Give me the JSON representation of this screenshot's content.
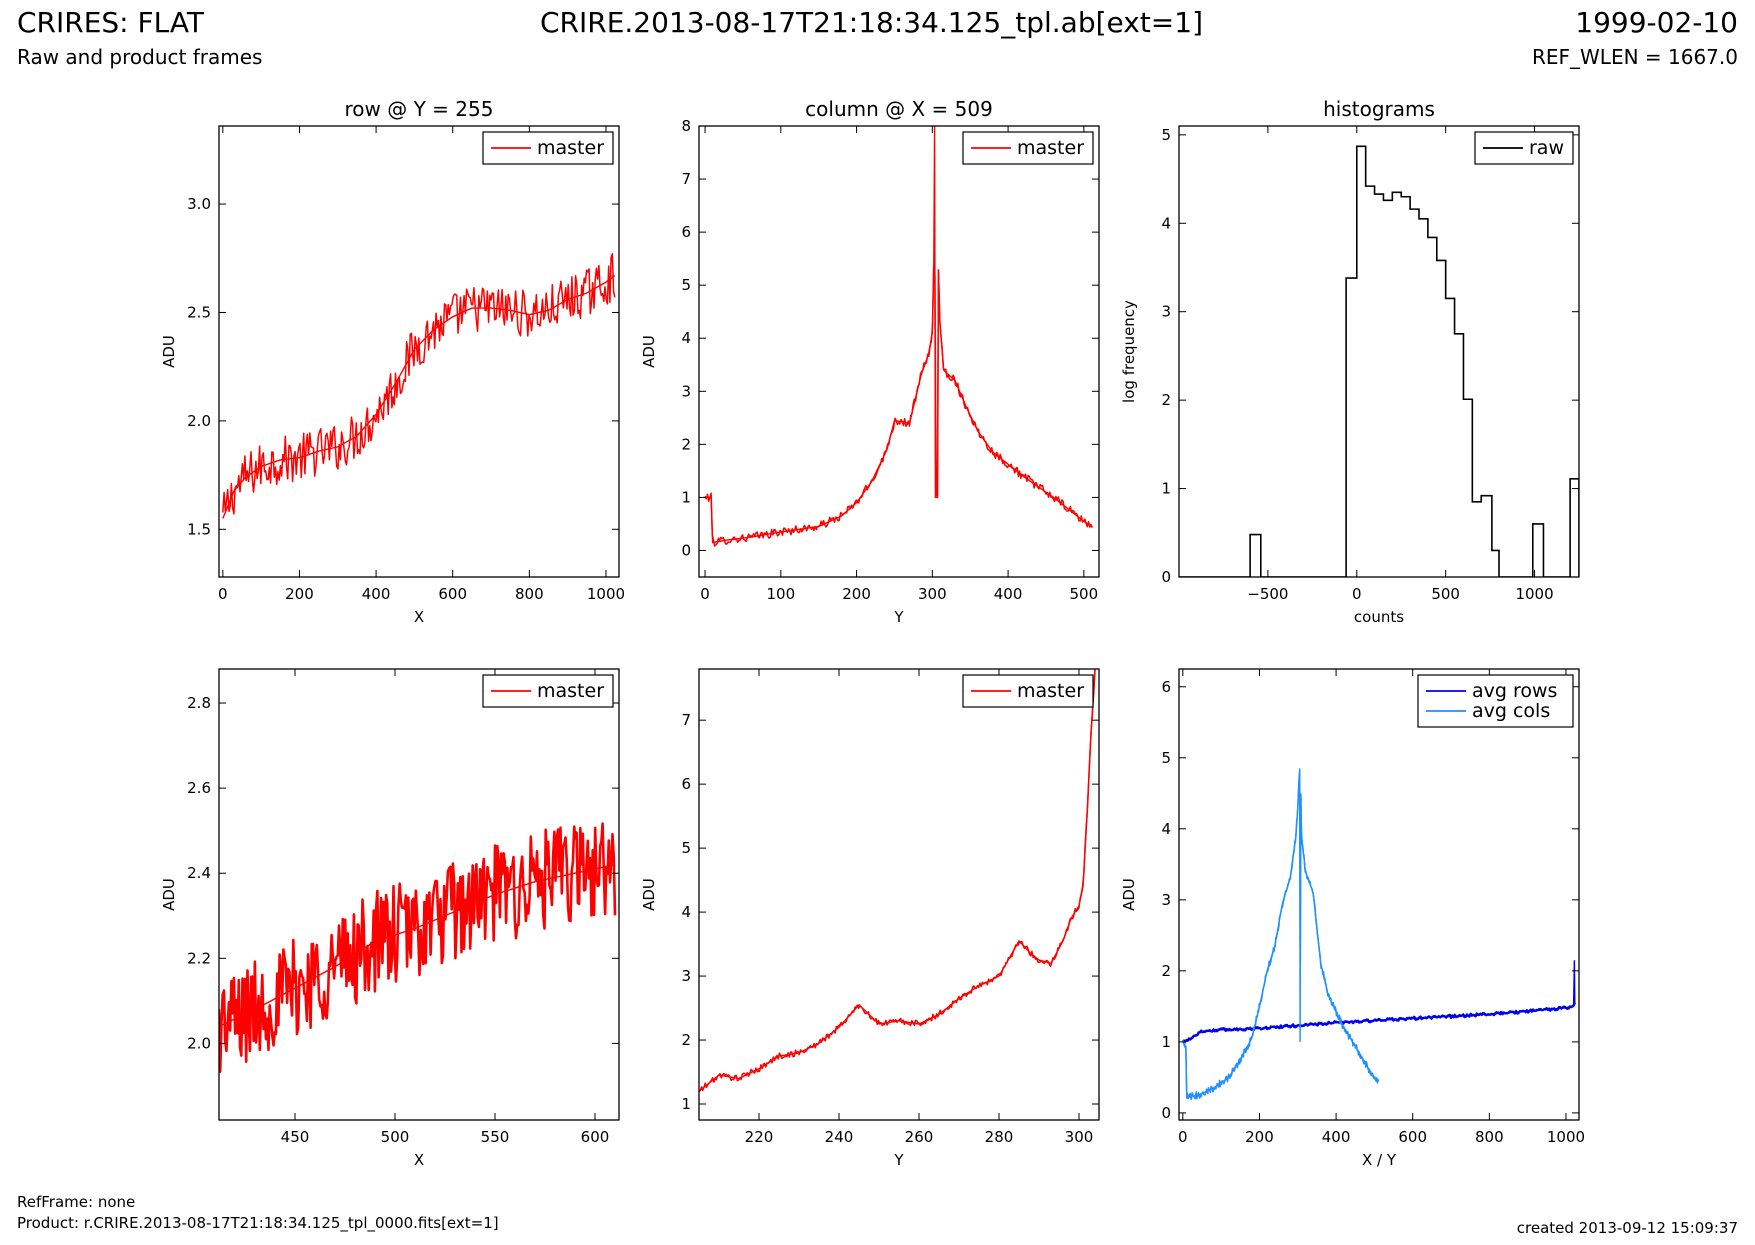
{
  "header": {
    "title": "CRIRES: FLAT",
    "subtitle": "Raw and product frames",
    "frame": "CRIRE.2013-08-17T21:18:34.125_tpl.ab[ext=1]",
    "date": "1999-02-10",
    "ref_wlen": "REF_WLEN = 1667.0"
  },
  "footer": {
    "refframe": "RefFrame: none",
    "product": "Product: r.CRIRE.2013-08-17T21:18:34.125_tpl_0000.fits[ext=1]",
    "created": "created 2013-09-12 15:09:37"
  },
  "colors": {
    "master": "#ff0000",
    "raw": "#000000",
    "avg_rows": "#0000ee",
    "avg_cols": "#1e90ff"
  },
  "chart_data": [
    {
      "type": "line",
      "title": "row @ Y = 255",
      "xlabel": "X",
      "ylabel": "ADU",
      "xlim": [
        -10,
        1034
      ],
      "ylim": [
        1.28,
        3.36
      ],
      "xticks": [
        0,
        200,
        400,
        600,
        800,
        1000
      ],
      "yticks": [
        1.5,
        2.0,
        2.5,
        3.0
      ],
      "legend": "top-right",
      "series": [
        {
          "name": "master",
          "x": [
            0,
            30,
            60,
            100,
            150,
            200,
            250,
            300,
            350,
            400,
            450,
            500,
            550,
            600,
            650,
            700,
            750,
            800,
            850,
            900,
            950,
            1000,
            1023
          ],
          "y": [
            1.55,
            1.68,
            1.74,
            1.79,
            1.82,
            1.83,
            1.86,
            1.88,
            1.93,
            2.03,
            2.17,
            2.33,
            2.42,
            2.48,
            2.52,
            2.52,
            2.51,
            2.49,
            2.51,
            2.56,
            2.59,
            2.64,
            2.67
          ],
          "noise": 0.11
        }
      ]
    },
    {
      "type": "line",
      "title": "column @ X = 509",
      "xlabel": "Y",
      "ylabel": "ADU",
      "xlim": [
        -8,
        520
      ],
      "ylim": [
        -0.5,
        8
      ],
      "xticks": [
        0,
        100,
        200,
        300,
        400,
        500
      ],
      "yticks": [
        0,
        1,
        2,
        3,
        4,
        5,
        6,
        7,
        8
      ],
      "legend": "top-right",
      "series": [
        {
          "name": "master",
          "x": [
            0,
            8,
            10,
            30,
            60,
            100,
            150,
            180,
            200,
            220,
            240,
            250,
            270,
            285,
            295,
            300,
            302,
            303,
            304,
            307,
            308,
            310,
            315,
            330,
            345,
            360,
            380,
            420,
            460,
            500,
            511
          ],
          "y": [
            1,
            1,
            0.15,
            0.2,
            0.25,
            0.35,
            0.45,
            0.65,
            0.9,
            1.3,
            1.9,
            2.45,
            2.4,
            3.3,
            3.7,
            4.1,
            5.4,
            8.0,
            1.0,
            1.0,
            5.3,
            4.3,
            3.4,
            3.2,
            2.7,
            2.25,
            1.85,
            1.4,
            1.0,
            0.55,
            0.45
          ],
          "noise": 0.08
        }
      ]
    },
    {
      "type": "bar",
      "title": "histograms",
      "xlabel": "counts",
      "ylabel": "log frequency",
      "xlim": [
        -1000,
        1250
      ],
      "ylim": [
        0,
        5.1
      ],
      "xticks": [
        -500,
        0,
        500,
        1000
      ],
      "yticks": [
        0,
        1,
        2,
        3,
        4,
        5
      ],
      "legend": "top-right",
      "series": [
        {
          "name": "raw",
          "edges": [
            -1000,
            -600,
            -540,
            -60,
            0,
            50,
            100,
            150,
            200,
            250,
            300,
            350,
            400,
            450,
            500,
            550,
            600,
            650,
            700,
            760,
            800,
            860,
            990,
            1050,
            1200,
            1250
          ],
          "values": [
            0,
            0.48,
            0,
            3.38,
            4.87,
            4.42,
            4.33,
            4.26,
            4.35,
            4.3,
            4.16,
            4.05,
            3.84,
            3.58,
            3.15,
            2.75,
            2.01,
            0.85,
            0.92,
            0.3,
            0,
            0,
            0.6,
            0,
            1.11
          ]
        }
      ]
    },
    {
      "type": "line",
      "xlabel": "X",
      "ylabel": "ADU",
      "xlim": [
        412,
        612
      ],
      "ylim": [
        1.82,
        2.88
      ],
      "xticks": [
        450,
        500,
        550,
        600
      ],
      "yticks": [
        2.0,
        2.2,
        2.4,
        2.6,
        2.8
      ],
      "legend": "top-right",
      "series": [
        {
          "name": "master",
          "x": [
            412,
            430,
            450,
            470,
            490,
            510,
            530,
            550,
            570,
            590,
            610
          ],
          "y": [
            2.04,
            2.08,
            2.13,
            2.18,
            2.24,
            2.27,
            2.31,
            2.35,
            2.38,
            2.4,
            2.42
          ],
          "noise": 0.12
        }
      ]
    },
    {
      "type": "line",
      "xlabel": "Y",
      "ylabel": "ADU",
      "xlim": [
        205,
        305
      ],
      "ylim": [
        0.75,
        7.8
      ],
      "xticks": [
        220,
        240,
        260,
        280,
        300
      ],
      "yticks": [
        1,
        2,
        3,
        4,
        5,
        6,
        7
      ],
      "legend": "top-right",
      "series": [
        {
          "name": "master",
          "x": [
            205,
            210,
            215,
            220,
            225,
            230,
            235,
            240,
            245,
            250,
            255,
            260,
            265,
            270,
            275,
            280,
            285,
            288,
            290,
            293,
            296,
            298,
            300,
            301,
            302,
            303,
            304
          ],
          "y": [
            1.2,
            1.45,
            1.4,
            1.55,
            1.75,
            1.8,
            1.95,
            2.2,
            2.55,
            2.25,
            2.3,
            2.25,
            2.4,
            2.65,
            2.85,
            3.0,
            3.55,
            3.35,
            3.25,
            3.2,
            3.55,
            3.9,
            4.1,
            4.4,
            5.5,
            6.8,
            7.8
          ],
          "noise": 0.05
        }
      ]
    },
    {
      "type": "line",
      "xlabel": "X / Y",
      "ylabel": "ADU",
      "xlim": [
        -10,
        1034
      ],
      "ylim": [
        -0.1,
        6.25
      ],
      "xticks": [
        0,
        200,
        400,
        600,
        800,
        1000
      ],
      "yticks": [
        0,
        1,
        2,
        3,
        4,
        5,
        6
      ],
      "legend": "top-right",
      "series": [
        {
          "name": "avg rows",
          "x": [
            0,
            20,
            50,
            100,
            200,
            300,
            400,
            500,
            600,
            700,
            800,
            900,
            1000,
            1020,
            1022,
            1023
          ],
          "y": [
            1.0,
            1.05,
            1.15,
            1.17,
            1.19,
            1.23,
            1.27,
            1.3,
            1.33,
            1.36,
            1.39,
            1.43,
            1.48,
            1.51,
            2.15,
            1.55
          ],
          "noise": 0.02
        },
        {
          "name": "avg cols",
          "x": [
            0,
            8,
            10,
            40,
            80,
            120,
            150,
            180,
            200,
            220,
            240,
            260,
            280,
            295,
            300,
            305,
            306,
            308,
            310,
            320,
            340,
            360,
            380,
            420,
            460,
            500,
            511
          ],
          "y": [
            1.0,
            0.9,
            0.22,
            0.25,
            0.35,
            0.5,
            0.75,
            1.05,
            1.5,
            2.0,
            2.35,
            2.95,
            3.3,
            3.9,
            4.3,
            4.85,
            1.0,
            4.5,
            3.9,
            3.4,
            3.1,
            2.1,
            1.65,
            1.2,
            0.85,
            0.48,
            0.44
          ],
          "noise": 0.05
        }
      ]
    }
  ]
}
